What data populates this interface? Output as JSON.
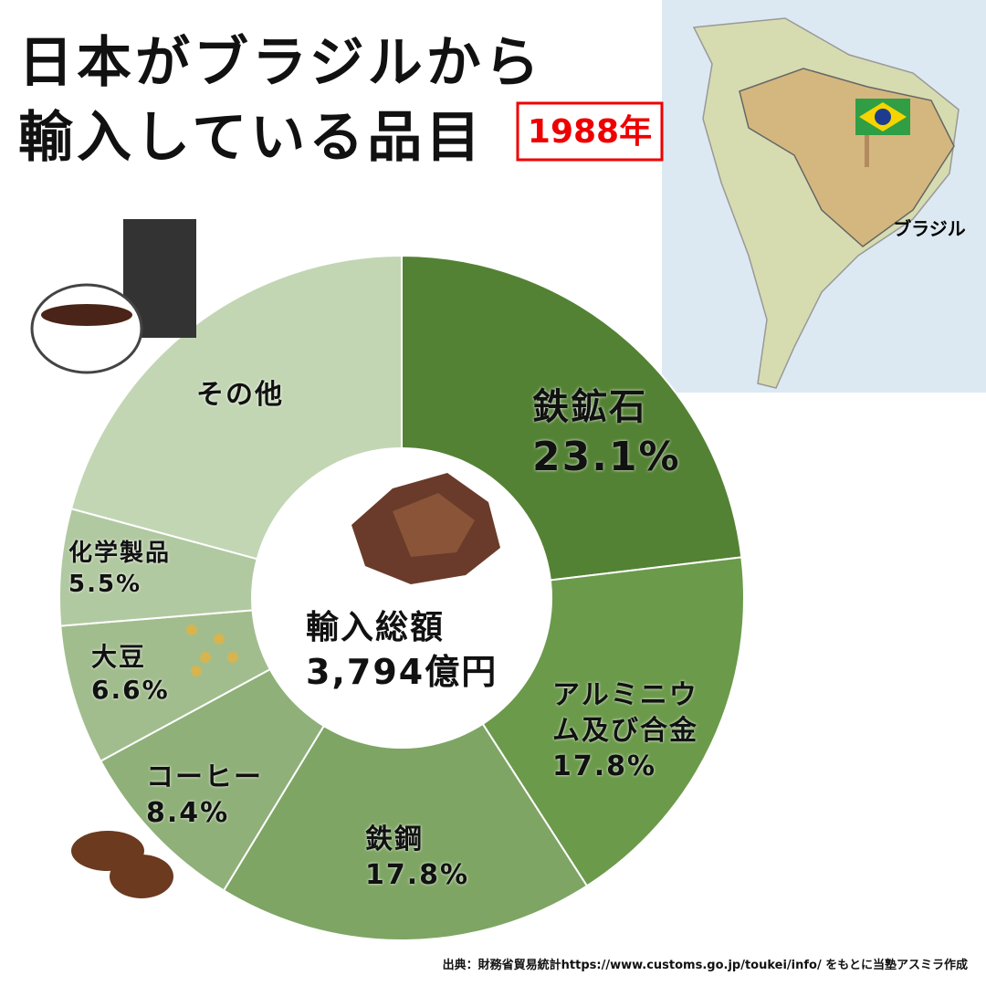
{
  "chart_data": {
    "type": "donut",
    "title": [
      "日本がブラジルから",
      "輸入している品目"
    ],
    "year": "1988年",
    "map_label": "ブラジル",
    "center_label": "輸入総額",
    "total": {
      "value": 3794,
      "label": "3,794億円"
    },
    "categories": [
      "鉄鉱石",
      "アルミニウム及び合金",
      "鉄鋼",
      "コーヒー",
      "大豆",
      "化学製品",
      "その他"
    ],
    "values": [
      23.1,
      17.8,
      17.8,
      8.4,
      6.6,
      5.5,
      20.8
    ],
    "value_labels": [
      "23.1%",
      "17.8%",
      "17.8%",
      "8.4%",
      "6.6%",
      "5.5%",
      null
    ],
    "colors": [
      "#548235",
      "#6b9a4b",
      "#7ea564",
      "#8fb078",
      "#a1bd8d",
      "#b1c9a1",
      "#c2d6b3"
    ],
    "source": "出典：財務省貿易統計https://www.customs.go.jp/toukei/info/ をもとに当塾アスミラ作成"
  }
}
